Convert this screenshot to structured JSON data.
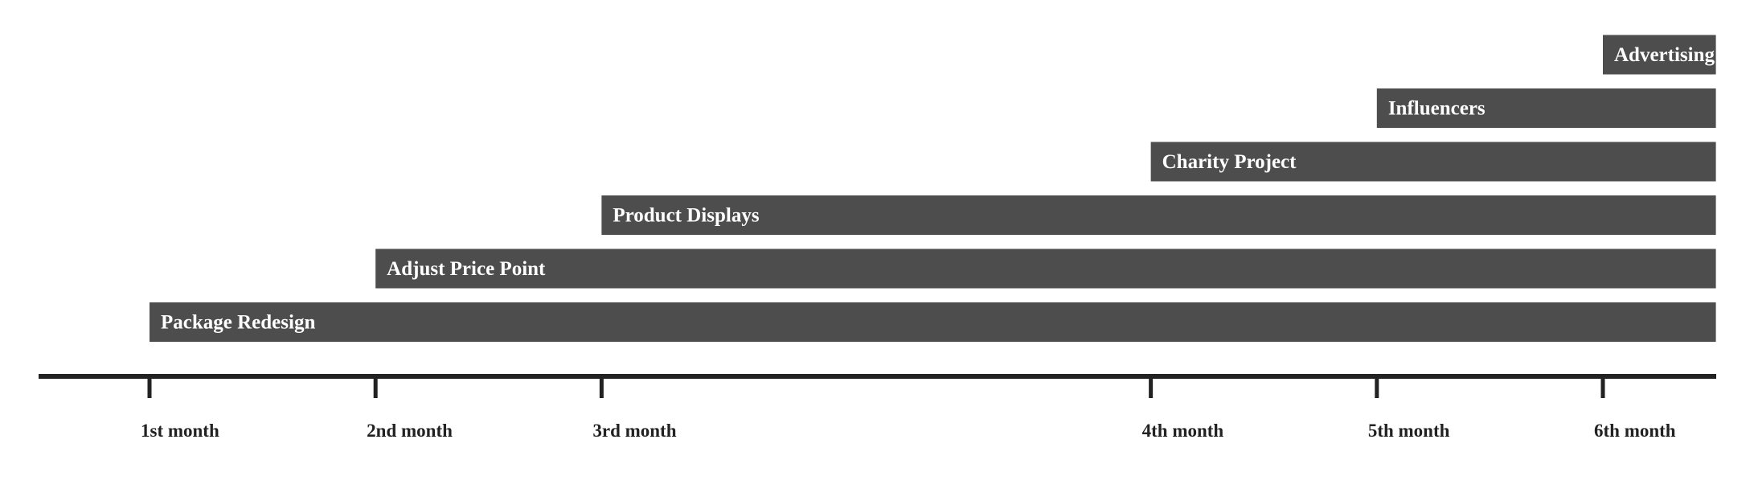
{
  "chart_data": {
    "type": "timeline",
    "title": "",
    "xlabel": "",
    "ylabel": "",
    "xlim": [
      0.5,
      6.5
    ],
    "ticks": [
      {
        "label": "1st month",
        "value": 1
      },
      {
        "label": "2nd month",
        "value": 2
      },
      {
        "label": "3rd month",
        "value": 3
      },
      {
        "label": "4th month",
        "value": 5.43
      },
      {
        "label": "5th month",
        "value": 6.43
      },
      {
        "label": "6th month",
        "value": 7.43
      }
    ],
    "axis_range": [
      0.5,
      7.93
    ],
    "tasks": [
      {
        "name": "Package Redesign",
        "start": 1,
        "end": 7.93
      },
      {
        "name": "Adjust Price Point",
        "start": 2,
        "end": 7.93
      },
      {
        "name": "Product Displays",
        "start": 3,
        "end": 7.93
      },
      {
        "name": "Charity Project",
        "start": 5.43,
        "end": 7.93
      },
      {
        "name": "Influencers",
        "start": 6.43,
        "end": 7.93
      },
      {
        "name": "Advertising",
        "start": 7.43,
        "end": 7.93
      }
    ],
    "colors": {
      "bar": "#4d4d4d",
      "axis": "#222222",
      "bar_text": "#ffffff",
      "tick_text": "#222222"
    }
  }
}
